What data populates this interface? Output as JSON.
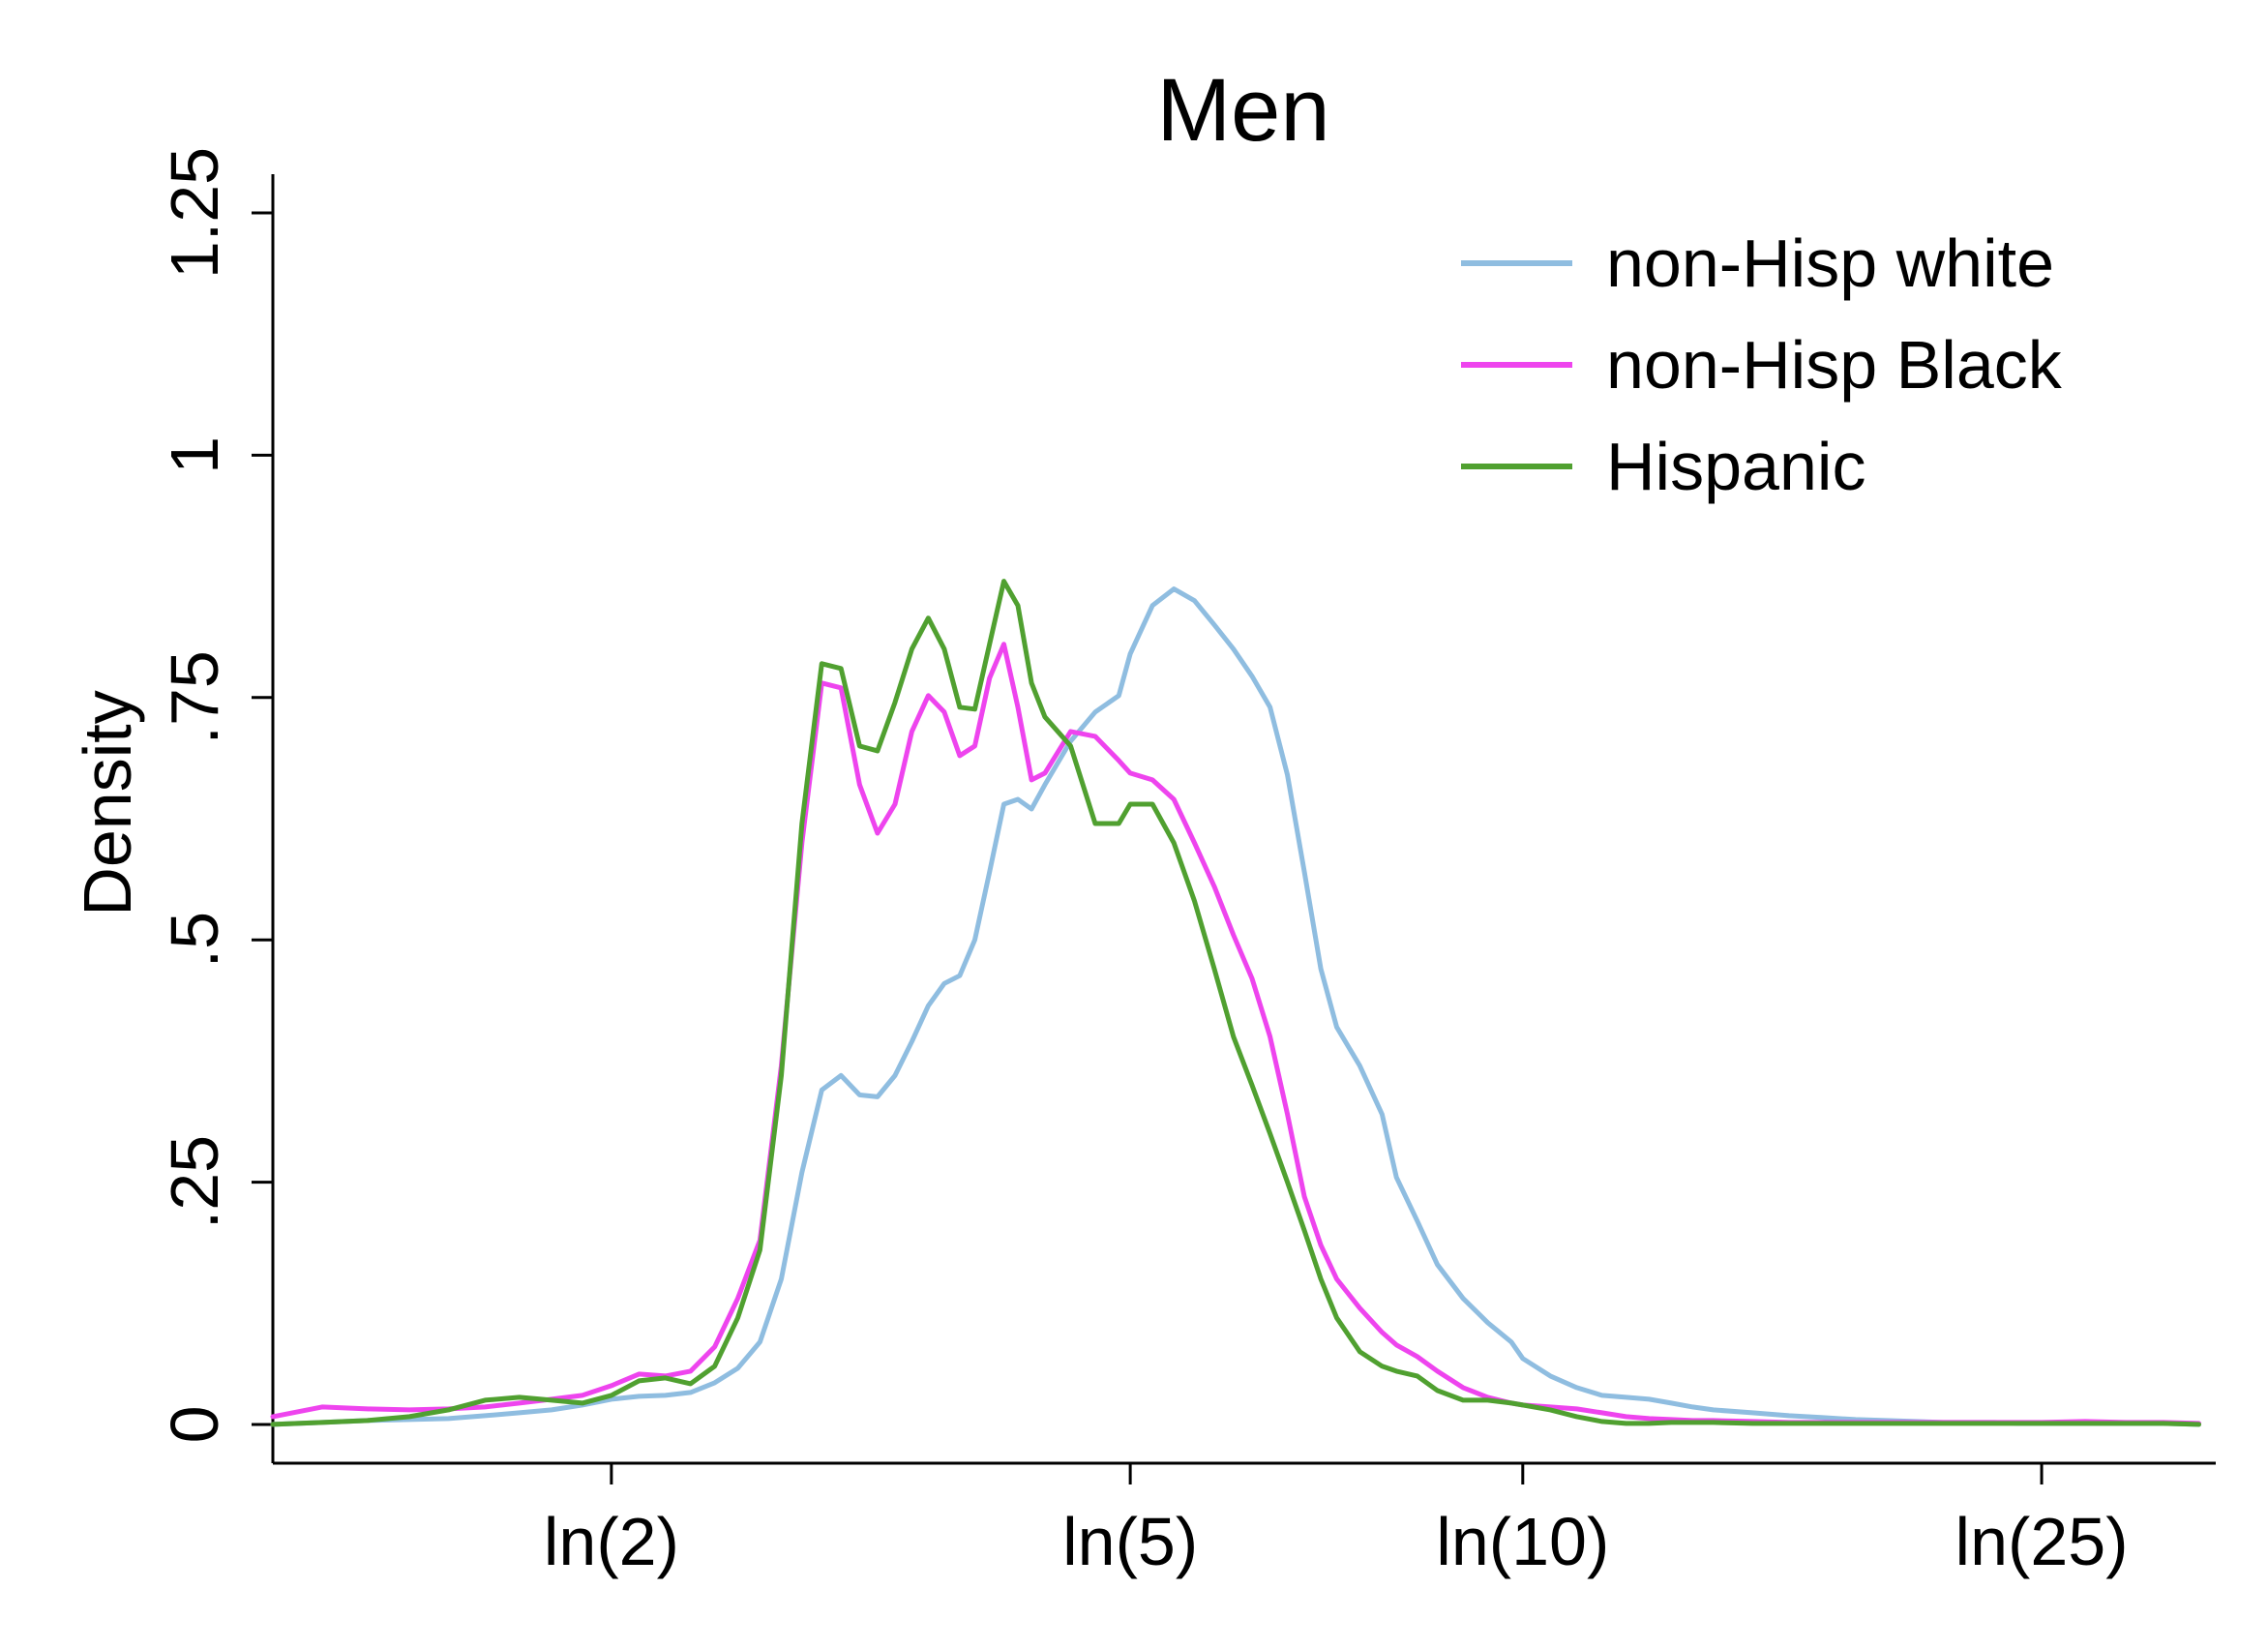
{
  "chart_data": {
    "type": "line",
    "title": "Men",
    "xlabel": "",
    "ylabel": "Density",
    "x_scale": "log",
    "xlim": [
      1.1,
      34
    ],
    "ylim": [
      -0.04,
      1.29
    ],
    "x_ticks": [
      {
        "value": 2,
        "label": "ln(2)"
      },
      {
        "value": 5,
        "label": "ln(5)"
      },
      {
        "value": 10,
        "label": "ln(10)"
      },
      {
        "value": 25,
        "label": "ln(25)"
      }
    ],
    "y_ticks": [
      {
        "value": 0,
        "label": "0"
      },
      {
        "value": 0.25,
        "label": ".25"
      },
      {
        "value": 0.5,
        "label": ".5"
      },
      {
        "value": 0.75,
        "label": ".75"
      },
      {
        "value": 1,
        "label": "1"
      },
      {
        "value": 1.25,
        "label": "1.25"
      }
    ],
    "grid": false,
    "legend_position": "top-right",
    "series": [
      {
        "name": "non-Hisp white",
        "color": "#8fbde0",
        "x": [
          1.1,
          1.2,
          1.3,
          1.4,
          1.5,
          1.6,
          1.7,
          1.8,
          1.9,
          2.0,
          2.1,
          2.2,
          2.3,
          2.4,
          2.5,
          2.6,
          2.7,
          2.8,
          2.9,
          3.0,
          3.1,
          3.2,
          3.3,
          3.4,
          3.5,
          3.6,
          3.7,
          3.8,
          3.9,
          4.0,
          4.1,
          4.2,
          4.3,
          4.5,
          4.7,
          4.9,
          5.0,
          5.2,
          5.4,
          5.6,
          5.8,
          6.0,
          6.2,
          6.4,
          6.6,
          6.8,
          7.0,
          7.2,
          7.5,
          7.8,
          8.0,
          8.3,
          8.6,
          9.0,
          9.4,
          9.8,
          10.0,
          10.5,
          11.0,
          11.5,
          12.0,
          12.5,
          13.0,
          13.5,
          14.0,
          15.0,
          16.0,
          17.0,
          18.0,
          19.0,
          20.0,
          21.0,
          22.0,
          23.0,
          24.0,
          25.0,
          27.0,
          29.0,
          31.0,
          33.0
        ],
        "y": [
          0.0,
          0.002,
          0.004,
          0.005,
          0.006,
          0.009,
          0.012,
          0.015,
          0.02,
          0.026,
          0.029,
          0.03,
          0.033,
          0.043,
          0.058,
          0.085,
          0.15,
          0.26,
          0.345,
          0.36,
          0.34,
          0.338,
          0.36,
          0.395,
          0.432,
          0.455,
          0.463,
          0.5,
          0.57,
          0.64,
          0.645,
          0.635,
          0.66,
          0.705,
          0.735,
          0.752,
          0.795,
          0.845,
          0.862,
          0.85,
          0.825,
          0.8,
          0.772,
          0.74,
          0.67,
          0.57,
          0.47,
          0.41,
          0.37,
          0.32,
          0.255,
          0.21,
          0.165,
          0.13,
          0.105,
          0.085,
          0.068,
          0.05,
          0.038,
          0.03,
          0.028,
          0.026,
          0.022,
          0.018,
          0.015,
          0.012,
          0.009,
          0.007,
          0.005,
          0.004,
          0.003,
          0.002,
          0.002,
          0.002,
          0.001,
          0.001,
          0.001,
          0.001,
          0.001,
          0.0
        ]
      },
      {
        "name": "non-Hisp Black",
        "color": "#ee44ee",
        "x": [
          1.1,
          1.2,
          1.3,
          1.4,
          1.5,
          1.6,
          1.7,
          1.8,
          1.9,
          2.0,
          2.1,
          2.2,
          2.3,
          2.4,
          2.5,
          2.6,
          2.7,
          2.8,
          2.9,
          3.0,
          3.1,
          3.2,
          3.3,
          3.4,
          3.5,
          3.6,
          3.7,
          3.8,
          3.9,
          4.0,
          4.1,
          4.2,
          4.3,
          4.5,
          4.7,
          4.9,
          5.0,
          5.2,
          5.4,
          5.6,
          5.8,
          6.0,
          6.2,
          6.4,
          6.6,
          6.8,
          7.0,
          7.2,
          7.5,
          7.8,
          8.0,
          8.3,
          8.6,
          9.0,
          9.4,
          9.8,
          10.0,
          10.5,
          11.0,
          11.5,
          12.0,
          12.5,
          13.0,
          13.5,
          14.0,
          15.0,
          16.0,
          17.0,
          18.0,
          19.0,
          20.0,
          21.0,
          22.0,
          23.0,
          24.0,
          25.0,
          27.0,
          29.0,
          31.0,
          33.0
        ],
        "y": [
          0.008,
          0.018,
          0.016,
          0.015,
          0.016,
          0.018,
          0.022,
          0.026,
          0.03,
          0.04,
          0.052,
          0.05,
          0.055,
          0.08,
          0.13,
          0.19,
          0.37,
          0.6,
          0.765,
          0.76,
          0.66,
          0.61,
          0.64,
          0.715,
          0.752,
          0.735,
          0.69,
          0.7,
          0.77,
          0.805,
          0.74,
          0.665,
          0.672,
          0.715,
          0.71,
          0.685,
          0.672,
          0.665,
          0.645,
          0.6,
          0.555,
          0.505,
          0.46,
          0.4,
          0.32,
          0.235,
          0.185,
          0.15,
          0.12,
          0.095,
          0.082,
          0.07,
          0.055,
          0.038,
          0.028,
          0.022,
          0.02,
          0.018,
          0.016,
          0.012,
          0.008,
          0.006,
          0.005,
          0.004,
          0.004,
          0.003,
          0.002,
          0.002,
          0.002,
          0.002,
          0.002,
          0.002,
          0.002,
          0.002,
          0.002,
          0.002,
          0.003,
          0.002,
          0.002,
          0.001
        ]
      },
      {
        "name": "Hispanic",
        "color": "#50a030",
        "x": [
          1.1,
          1.2,
          1.3,
          1.4,
          1.5,
          1.6,
          1.7,
          1.8,
          1.9,
          2.0,
          2.1,
          2.2,
          2.3,
          2.4,
          2.5,
          2.6,
          2.7,
          2.8,
          2.9,
          3.0,
          3.1,
          3.2,
          3.3,
          3.4,
          3.5,
          3.6,
          3.7,
          3.8,
          3.9,
          4.0,
          4.1,
          4.2,
          4.3,
          4.5,
          4.7,
          4.9,
          5.0,
          5.2,
          5.4,
          5.6,
          5.8,
          6.0,
          6.2,
          6.4,
          6.6,
          6.8,
          7.0,
          7.2,
          7.5,
          7.8,
          8.0,
          8.3,
          8.6,
          9.0,
          9.4,
          9.8,
          10.0,
          10.5,
          11.0,
          11.5,
          12.0,
          12.5,
          13.0,
          13.5,
          14.0,
          15.0,
          16.0,
          17.0,
          18.0,
          19.0,
          20.0,
          21.0,
          22.0,
          23.0,
          24.0,
          25.0,
          27.0,
          29.0,
          31.0,
          33.0
        ],
        "y": [
          0.0,
          0.002,
          0.004,
          0.008,
          0.015,
          0.025,
          0.028,
          0.025,
          0.022,
          0.03,
          0.045,
          0.048,
          0.042,
          0.06,
          0.11,
          0.18,
          0.36,
          0.62,
          0.785,
          0.78,
          0.7,
          0.695,
          0.745,
          0.8,
          0.832,
          0.8,
          0.74,
          0.738,
          0.805,
          0.87,
          0.845,
          0.765,
          0.73,
          0.7,
          0.62,
          0.62,
          0.64,
          0.64,
          0.6,
          0.54,
          0.47,
          0.4,
          0.35,
          0.3,
          0.25,
          0.2,
          0.15,
          0.11,
          0.075,
          0.06,
          0.055,
          0.05,
          0.035,
          0.025,
          0.025,
          0.022,
          0.02,
          0.015,
          0.008,
          0.003,
          0.001,
          0.001,
          0.002,
          0.002,
          0.002,
          0.001,
          0.001,
          0.001,
          0.001,
          0.001,
          0.001,
          0.001,
          0.001,
          0.001,
          0.001,
          0.001,
          0.001,
          0.001,
          0.001,
          0.0
        ]
      }
    ]
  }
}
